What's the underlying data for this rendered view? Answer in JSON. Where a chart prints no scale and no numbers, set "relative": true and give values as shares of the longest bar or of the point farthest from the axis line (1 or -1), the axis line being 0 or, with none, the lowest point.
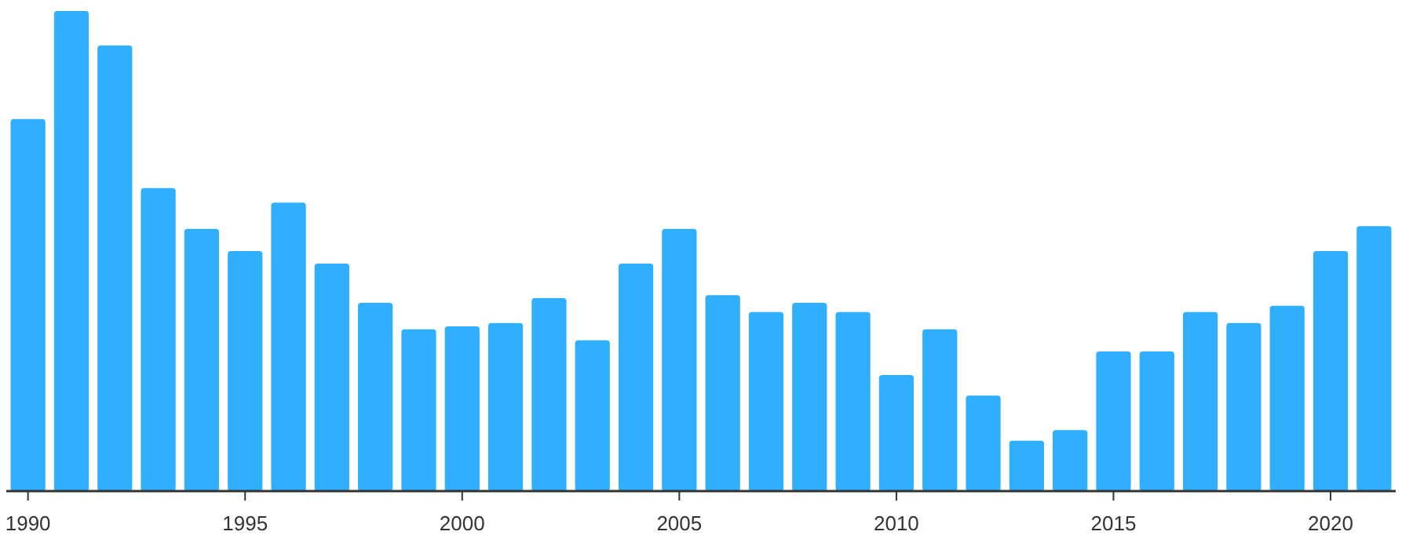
{
  "chart_data": {
    "type": "bar",
    "relative": true,
    "color": "#30aeff",
    "categories": [
      "1990",
      null,
      null,
      null,
      null,
      "1995",
      null,
      null,
      null,
      null,
      "2000",
      null,
      null,
      null,
      null,
      "2005",
      null,
      null,
      null,
      null,
      "2010",
      null,
      null,
      null,
      null,
      "2015",
      null,
      null,
      null,
      null,
      "2020",
      null
    ],
    "values": [
      0.775,
      1,
      0.928,
      0.631,
      0.546,
      0.5,
      0.601,
      0.474,
      0.392,
      0.337,
      0.343,
      0.35,
      0.402,
      0.314,
      0.474,
      0.546,
      0.408,
      0.373,
      0.392,
      0.373,
      0.242,
      0.337,
      0.199,
      0.105,
      0.127,
      0.291,
      0.291,
      0.373,
      0.35,
      0.386,
      0.5,
      0.552
    ]
  }
}
